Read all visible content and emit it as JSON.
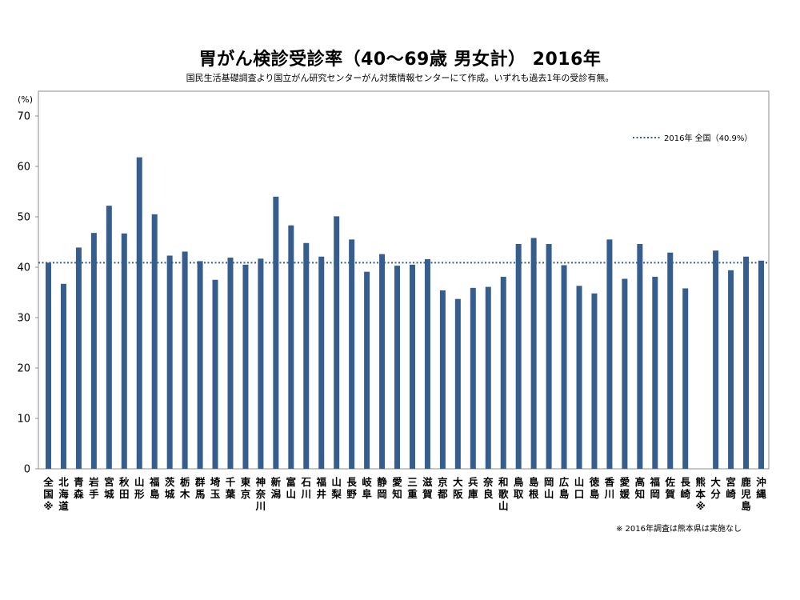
{
  "chart_data": {
    "type": "bar",
    "title": "胃がん検診受診率（40〜69歳 男女計） 2016年",
    "subtitle": "国民生活基礎調査より国立がん研究センターがん対策情報センターにて作成。いずれも過去1年の受診有無。",
    "ylabel": "(%)",
    "ylim": [
      0,
      70
    ],
    "yticks": [
      0,
      10,
      20,
      30,
      40,
      50,
      60,
      70
    ],
    "categories": [
      "全国※",
      "北海道",
      "青森",
      "岩手",
      "宮城",
      "秋田",
      "山形",
      "福島",
      "茨城",
      "栃木",
      "群馬",
      "埼玉",
      "千葉",
      "東京",
      "神奈川",
      "新潟",
      "富山",
      "石川",
      "福井",
      "山梨",
      "長野",
      "岐阜",
      "静岡",
      "愛知",
      "三重",
      "滋賀",
      "京都",
      "大阪",
      "兵庫",
      "奈良",
      "和歌山",
      "鳥取",
      "島根",
      "岡山",
      "広島",
      "山口",
      "徳島",
      "香川",
      "愛媛",
      "高知",
      "福岡",
      "佐賀",
      "長崎",
      "熊本※",
      "大分",
      "宮崎",
      "鹿児島",
      "沖縄"
    ],
    "values": [
      40.9,
      36.7,
      43.9,
      46.8,
      52.2,
      46.7,
      61.8,
      50.5,
      42.3,
      43.1,
      41.2,
      37.5,
      41.9,
      40.5,
      41.7,
      54.0,
      48.3,
      44.8,
      42.1,
      50.1,
      45.5,
      39.1,
      42.6,
      40.3,
      40.5,
      41.6,
      35.4,
      33.7,
      35.9,
      36.1,
      38.1,
      44.6,
      45.8,
      44.6,
      40.4,
      36.3,
      34.8,
      45.5,
      37.7,
      44.6,
      38.1,
      42.9,
      35.8,
      null,
      43.3,
      39.4,
      42.1,
      41.3
    ],
    "reference_line": {
      "label": "2016年 全国（40.9%）",
      "value": 40.9
    },
    "legend": "top-right",
    "bar_color": "#355D8E",
    "ref_color": "#355D8E",
    "footnote": "※ 2016年調査は熊本県は実施なし"
  }
}
